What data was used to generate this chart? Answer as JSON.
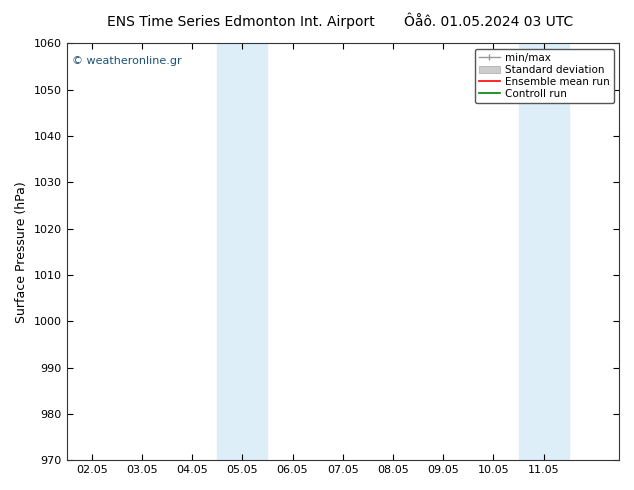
{
  "title_left": "ENS Time Series Edmonton Int. Airport",
  "title_right": "Ôåô. 01.05.2024 03 UTC",
  "ylabel": "Surface Pressure (hPa)",
  "ylim": [
    970,
    1060
  ],
  "yticks": [
    970,
    980,
    990,
    1000,
    1010,
    1020,
    1030,
    1040,
    1050,
    1060
  ],
  "xtick_labels": [
    "02.05",
    "03.05",
    "04.05",
    "05.05",
    "06.05",
    "07.05",
    "08.05",
    "09.05",
    "10.05",
    "11.05"
  ],
  "xtick_positions": [
    0,
    1,
    2,
    3,
    4,
    5,
    6,
    7,
    8,
    9
  ],
  "xlim": [
    -0.5,
    10.5
  ],
  "shaded_bands": [
    {
      "xmin": 2.5,
      "xmax": 3.5,
      "color": "#ddeef8"
    },
    {
      "xmin": 8.5,
      "xmax": 9.5,
      "color": "#ddeef8"
    }
  ],
  "watermark": "© weatheronline.gr",
  "watermark_color": "#1a5276",
  "legend_labels": [
    "min/max",
    "Standard deviation",
    "Ensemble mean run",
    "Controll run"
  ],
  "bg_color": "#ffffff",
  "plot_bg_color": "#ffffff",
  "title_fontsize": 10,
  "tick_fontsize": 8,
  "ylabel_fontsize": 9
}
